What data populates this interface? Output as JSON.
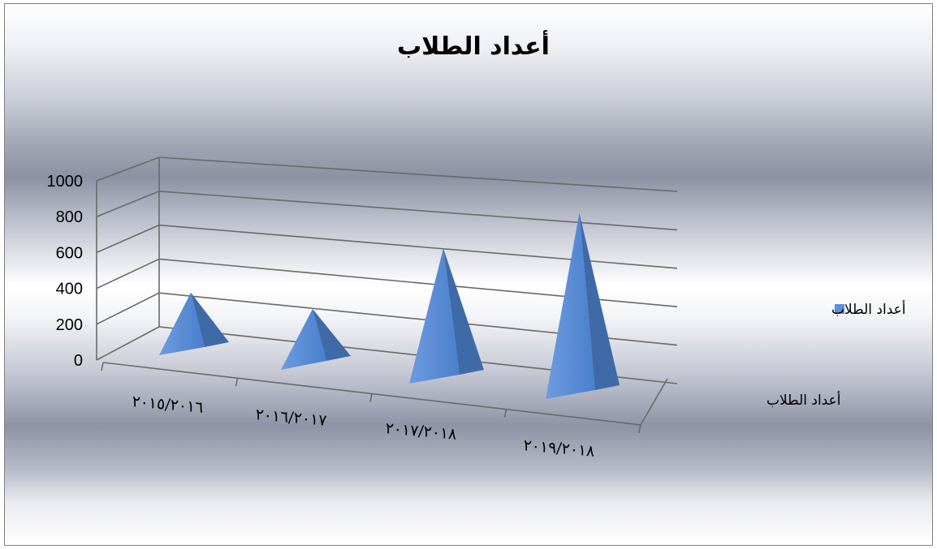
{
  "chart_data": {
    "type": "bar",
    "bar_shape": "pyramid",
    "view": "3d",
    "title": "أعداد الطلاب",
    "categories": [
      "٢٠١٥/٢٠١٦",
      "٢٠١٦/٢٠١٧",
      "٢٠١٧/٢٠١٨",
      "٢٠١٩/٢٠١٨"
    ],
    "series": [
      {
        "name": "أعداد الطلاب",
        "values": [
          300,
          290,
          700,
          980
        ],
        "color": "#5b8fd6"
      }
    ],
    "series_axis_label": "أعداد الطلاب",
    "ylim": [
      0,
      1000
    ],
    "yticks": [
      "0",
      "200",
      "400",
      "600",
      "800",
      "1000"
    ],
    "grid": true,
    "legend": {
      "position": "right",
      "entries": [
        "أعداد الطلاب"
      ]
    }
  }
}
